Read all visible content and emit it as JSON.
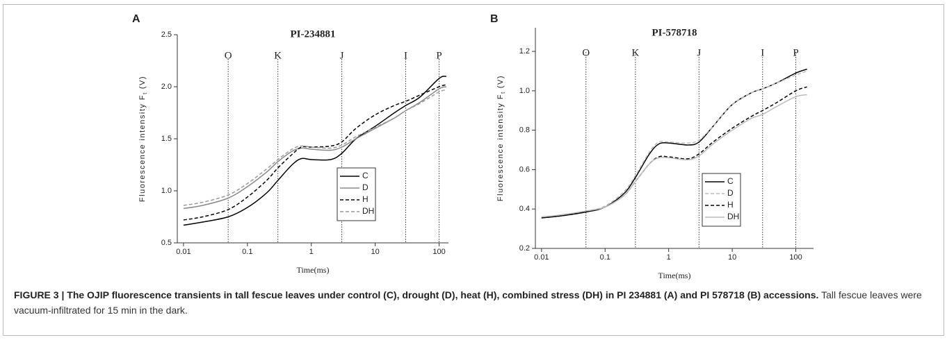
{
  "chart_data": [
    {
      "type": "line",
      "panel": "A",
      "title": "PI-234881",
      "xlabel": "Time(ms)",
      "ylabel": {
        "main": "Fluorescence intensity F",
        "sub": "t",
        "unit": "(V)"
      },
      "log_x": true,
      "xlim": [
        0.008,
        140
      ],
      "ylim": [
        0.5,
        2.5
      ],
      "xticks": [
        0.01,
        0.1,
        1,
        10,
        100
      ],
      "yticks": [
        0.5,
        {
          "value": 1,
          "label": "1.0"
        },
        1.5,
        {
          "value": 2,
          "label": "2.0"
        },
        2.5
      ],
      "markers": [
        {
          "label": "O",
          "x": 0.05
        },
        {
          "label": "K",
          "x": 0.3
        },
        {
          "label": "J",
          "x": 3
        },
        {
          "label": "I",
          "x": 30
        },
        {
          "label": "P",
          "x": 100
        }
      ],
      "legend": "lower right",
      "x": [
        0.01,
        0.02,
        0.05,
        0.1,
        0.2,
        0.3,
        0.5,
        0.7,
        1,
        2,
        3,
        5,
        10,
        20,
        30,
        50,
        100,
        130
      ],
      "series": [
        {
          "name": "C",
          "color": "#000000",
          "dash": false,
          "values": [
            0.67,
            0.7,
            0.75,
            0.84,
            0.98,
            1.1,
            1.25,
            1.31,
            1.3,
            1.3,
            1.36,
            1.5,
            1.62,
            1.75,
            1.82,
            1.9,
            2.08,
            2.1
          ]
        },
        {
          "name": "D",
          "color": "#888888",
          "dash": false,
          "values": [
            0.83,
            0.86,
            0.93,
            1.04,
            1.18,
            1.28,
            1.38,
            1.41,
            1.4,
            1.39,
            1.42,
            1.5,
            1.6,
            1.7,
            1.77,
            1.85,
            1.98,
            2.0
          ]
        },
        {
          "name": "H",
          "color": "#000000",
          "dash": true,
          "values": [
            0.72,
            0.75,
            0.82,
            0.94,
            1.1,
            1.22,
            1.35,
            1.42,
            1.42,
            1.43,
            1.47,
            1.6,
            1.73,
            1.82,
            1.86,
            1.92,
            2.0,
            2.02
          ]
        },
        {
          "name": "DH",
          "color": "#999999",
          "dash": true,
          "values": [
            0.86,
            0.89,
            0.96,
            1.07,
            1.21,
            1.3,
            1.4,
            1.43,
            1.42,
            1.41,
            1.44,
            1.52,
            1.61,
            1.7,
            1.77,
            1.84,
            1.95,
            1.97
          ]
        }
      ]
    },
    {
      "type": "line",
      "panel": "B",
      "title": "PI-578718",
      "xlabel": "Time(ms)",
      "ylabel": {
        "main": "Fluorescence intensity F",
        "sub": "t",
        "unit": "(V)"
      },
      "log_x": true,
      "xlim": [
        0.008,
        190
      ],
      "ylim": [
        0.2,
        1.32
      ],
      "xticks": [
        0.01,
        0.1,
        1,
        10,
        100
      ],
      "yticks": [
        0.2,
        0.4,
        0.6,
        0.8,
        {
          "value": 1,
          "label": "1.0"
        },
        1.2
      ],
      "markers": [
        {
          "label": "O",
          "x": 0.05
        },
        {
          "label": "K",
          "x": 0.3
        },
        {
          "label": "J",
          "x": 3
        },
        {
          "label": "I",
          "x": 30
        },
        {
          "label": "P",
          "x": 100
        }
      ],
      "legend": "lower right",
      "x": [
        0.01,
        0.02,
        0.05,
        0.1,
        0.2,
        0.3,
        0.5,
        0.7,
        1,
        2,
        3,
        5,
        10,
        20,
        30,
        50,
        100,
        150
      ],
      "series": [
        {
          "name": "C",
          "color": "#000000",
          "dash": false,
          "values": [
            0.355,
            0.365,
            0.385,
            0.41,
            0.48,
            0.56,
            0.68,
            0.73,
            0.735,
            0.725,
            0.74,
            0.82,
            0.93,
            0.99,
            1.01,
            1.04,
            1.09,
            1.11
          ]
        },
        {
          "name": "D",
          "color": "#bbbbbb",
          "dash": true,
          "values": [
            0.36,
            0.37,
            0.39,
            0.415,
            0.49,
            0.57,
            0.69,
            0.74,
            0.74,
            0.735,
            0.75,
            0.82,
            0.93,
            0.99,
            1.01,
            1.04,
            1.08,
            1.1
          ]
        },
        {
          "name": "H",
          "color": "#000000",
          "dash": true,
          "values": [
            0.355,
            0.365,
            0.385,
            0.41,
            0.47,
            0.54,
            0.63,
            0.665,
            0.665,
            0.655,
            0.68,
            0.74,
            0.81,
            0.87,
            0.9,
            0.94,
            1.0,
            1.02
          ]
        },
        {
          "name": "DH",
          "color": "#bbbbbb",
          "dash": false,
          "values": [
            0.36,
            0.37,
            0.39,
            0.41,
            0.47,
            0.54,
            0.63,
            0.66,
            0.66,
            0.65,
            0.67,
            0.73,
            0.8,
            0.86,
            0.88,
            0.92,
            0.97,
            0.98
          ]
        }
      ]
    }
  ],
  "caption": {
    "bold": "FIGURE 3 | The OJIP fluorescence transients in tall fescue leaves under control (C), drought (D), heat (H), combined stress (DH) in PI 234881 (A) and PI 578718 (B) accessions.",
    "text": "Tall fescue leaves were vacuum-infiltrated for 15 min in the dark."
  }
}
